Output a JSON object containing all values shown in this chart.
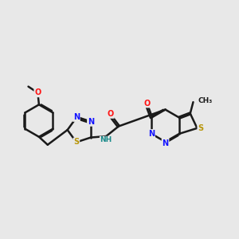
{
  "background_color": "#e8e8e8",
  "bond_color": "#1a1a1a",
  "bond_width": 1.8,
  "atom_colors": {
    "C": "#1a1a1a",
    "N": "#1414ff",
    "O": "#ff1414",
    "S": "#b8960a",
    "H": "#1a8a8a"
  },
  "font_size": 7.0
}
